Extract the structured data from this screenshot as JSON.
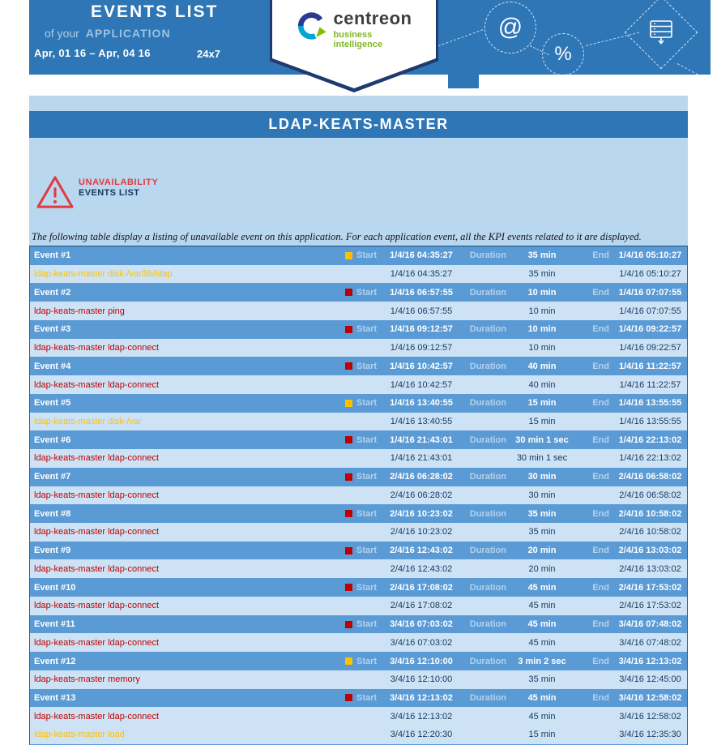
{
  "banner": {
    "title": "EVENTS LIST",
    "subtitle_prefix": "of your",
    "subtitle_word": "APPLICATION",
    "date_range": "Apr, 01 16 – Apr, 04 16",
    "schedule": "24x7",
    "logo_name": "centreon",
    "logo_tagline": "business intelligence",
    "decor_at": "@",
    "decor_percent": "%"
  },
  "page": {
    "title": "LDAP-KEATS-MASTER"
  },
  "section": {
    "heading_line1": "UNAVAILABILITY",
    "heading_line2": "EVENTS LIST"
  },
  "description": "The following table display a listing of unavailable event on this application. For each application event, all the KPI events related to it are displayed.",
  "labels": {
    "start": "Start",
    "duration": "Duration",
    "end": "End"
  },
  "colors": {
    "banner_blue": "#2e76b6",
    "panel_blue": "#b9d7ee",
    "event_row_blue": "#5b9bd5",
    "kpi_row_blue": "#cde3f5",
    "critical": "#c00000",
    "warning": "#ffc000"
  },
  "events": [
    {
      "label": "Event #1",
      "severity": "orange",
      "start": "1/4/16 04:35:27",
      "duration": "35 min",
      "end": "1/4/16 05:10:27",
      "kpis": [
        {
          "name": "ldap-keats-master disk-/var/lib/ldap",
          "severity": "orange",
          "start": "1/4/16 04:35:27",
          "duration": "35 min",
          "end": "1/4/16 05:10:27"
        }
      ]
    },
    {
      "label": "Event #2",
      "severity": "red",
      "start": "1/4/16 06:57:55",
      "duration": "10 min",
      "end": "1/4/16 07:07:55",
      "kpis": [
        {
          "name": "ldap-keats-master ping",
          "severity": "red",
          "start": "1/4/16 06:57:55",
          "duration": "10 min",
          "end": "1/4/16 07:07:55"
        }
      ]
    },
    {
      "label": "Event #3",
      "severity": "red",
      "start": "1/4/16 09:12:57",
      "duration": "10 min",
      "end": "1/4/16 09:22:57",
      "kpis": [
        {
          "name": "ldap-keats-master ldap-connect",
          "severity": "red",
          "start": "1/4/16 09:12:57",
          "duration": "10 min",
          "end": "1/4/16 09:22:57"
        }
      ]
    },
    {
      "label": "Event #4",
      "severity": "red",
      "start": "1/4/16 10:42:57",
      "duration": "40 min",
      "end": "1/4/16 11:22:57",
      "kpis": [
        {
          "name": "ldap-keats-master ldap-connect",
          "severity": "red",
          "start": "1/4/16 10:42:57",
          "duration": "40 min",
          "end": "1/4/16 11:22:57"
        }
      ]
    },
    {
      "label": "Event #5",
      "severity": "orange",
      "start": "1/4/16 13:40:55",
      "duration": "15 min",
      "end": "1/4/16 13:55:55",
      "kpis": [
        {
          "name": "ldap-keats-master disk-/var",
          "severity": "orange",
          "start": "1/4/16 13:40:55",
          "duration": "15 min",
          "end": "1/4/16 13:55:55"
        }
      ]
    },
    {
      "label": "Event #6",
      "severity": "red",
      "start": "1/4/16 21:43:01",
      "duration": "30 min 1 sec",
      "end": "1/4/16 22:13:02",
      "kpis": [
        {
          "name": "ldap-keats-master ldap-connect",
          "severity": "red",
          "start": "1/4/16 21:43:01",
          "duration": "30 min 1 sec",
          "end": "1/4/16 22:13:02"
        }
      ]
    },
    {
      "label": "Event #7",
      "severity": "red",
      "start": "2/4/16 06:28:02",
      "duration": "30 min",
      "end": "2/4/16 06:58:02",
      "kpis": [
        {
          "name": "ldap-keats-master ldap-connect",
          "severity": "red",
          "start": "2/4/16 06:28:02",
          "duration": "30 min",
          "end": "2/4/16 06:58:02"
        }
      ]
    },
    {
      "label": "Event #8",
      "severity": "red",
      "start": "2/4/16 10:23:02",
      "duration": "35 min",
      "end": "2/4/16 10:58:02",
      "kpis": [
        {
          "name": "ldap-keats-master ldap-connect",
          "severity": "red",
          "start": "2/4/16 10:23:02",
          "duration": "35 min",
          "end": "2/4/16 10:58:02"
        }
      ]
    },
    {
      "label": "Event #9",
      "severity": "red",
      "start": "2/4/16 12:43:02",
      "duration": "20 min",
      "end": "2/4/16 13:03:02",
      "kpis": [
        {
          "name": "ldap-keats-master ldap-connect",
          "severity": "red",
          "start": "2/4/16 12:43:02",
          "duration": "20 min",
          "end": "2/4/16 13:03:02"
        }
      ]
    },
    {
      "label": "Event #10",
      "severity": "red",
      "start": "2/4/16 17:08:02",
      "duration": "45 min",
      "end": "2/4/16 17:53:02",
      "kpis": [
        {
          "name": "ldap-keats-master ldap-connect",
          "severity": "red",
          "start": "2/4/16 17:08:02",
          "duration": "45 min",
          "end": "2/4/16 17:53:02"
        }
      ]
    },
    {
      "label": "Event #11",
      "severity": "red",
      "start": "3/4/16 07:03:02",
      "duration": "45 min",
      "end": "3/4/16 07:48:02",
      "kpis": [
        {
          "name": "ldap-keats-master ldap-connect",
          "severity": "red",
          "start": "3/4/16 07:03:02",
          "duration": "45 min",
          "end": "3/4/16 07:48:02"
        }
      ]
    },
    {
      "label": "Event #12",
      "severity": "orange",
      "start": "3/4/16 12:10:00",
      "duration": "3 min 2 sec",
      "end": "3/4/16 12:13:02",
      "kpis": [
        {
          "name": "ldap-keats-master memory",
          "severity": "red",
          "start": "3/4/16 12:10:00",
          "duration": "35 min",
          "end": "3/4/16 12:45:00"
        }
      ]
    },
    {
      "label": "Event #13",
      "severity": "red",
      "start": "3/4/16 12:13:02",
      "duration": "45 min",
      "end": "3/4/16 12:58:02",
      "kpis": [
        {
          "name": "ldap-keats-master ldap-connect",
          "severity": "red",
          "start": "3/4/16 12:13:02",
          "duration": "45 min",
          "end": "3/4/16 12:58:02"
        },
        {
          "name": "ldap-keats-master load",
          "severity": "orange",
          "start": "3/4/16 12:20:30",
          "duration": "15 min",
          "end": "3/4/16 12:35:30"
        }
      ]
    }
  ]
}
